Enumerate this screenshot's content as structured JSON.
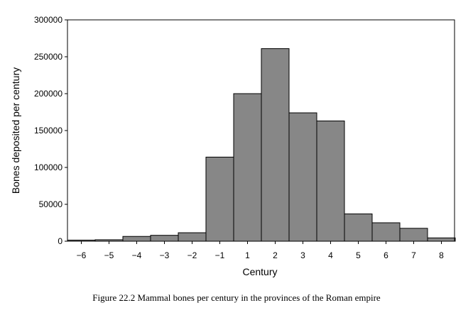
{
  "chart_data": {
    "type": "bar",
    "caption": "Figure 22.2  Mammal bones per century in the provinces of the Roman empire",
    "xlabel": "Century",
    "ylabel": "Bones deposited per century",
    "categories": [
      "−6",
      "−5",
      "−4",
      "−3",
      "−2",
      "−1",
      "1",
      "2",
      "3",
      "4",
      "5",
      "6",
      "7",
      "8"
    ],
    "values": [
      1500,
      2000,
      6500,
      8000,
      11500,
      114000,
      200000,
      261000,
      174000,
      163000,
      37000,
      25000,
      17500,
      4500
    ],
    "ylim": [
      0,
      300000
    ],
    "yticks": [
      "0",
      "50000",
      "100000",
      "150000",
      "200000",
      "250000",
      "300000"
    ],
    "ytick_values": [
      0,
      50000,
      100000,
      150000,
      200000,
      250000,
      300000
    ],
    "grid": false,
    "colors": {
      "bar_fill": "#878787",
      "bar_stroke": "#000000"
    }
  }
}
